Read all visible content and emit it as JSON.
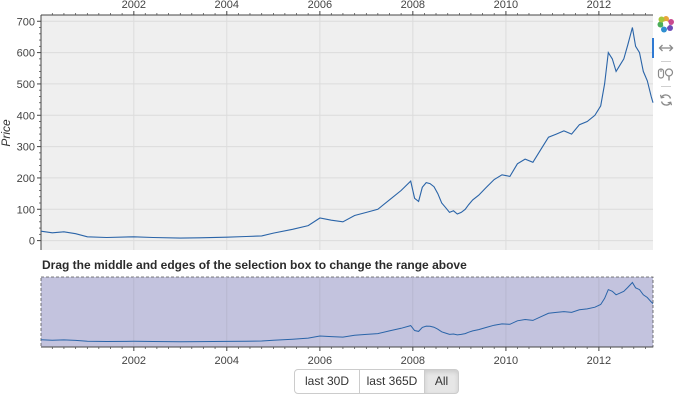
{
  "colors": {
    "plot_background": "#efefef",
    "line": "#2a64a8",
    "selection_fill": "#c0c0dc",
    "tool_active": "#2f7ad3"
  },
  "main_chart": {
    "ylabel": "Price",
    "y_ticks": [
      "0",
      "100",
      "200",
      "300",
      "400",
      "500",
      "600",
      "700"
    ],
    "x_ticks": [
      "2002",
      "2004",
      "2006",
      "2008",
      "2010",
      "2012"
    ]
  },
  "range_selector": {
    "title": "Drag the middle and edges of the selection box to change the range above",
    "x_ticks": [
      "2002",
      "2004",
      "2006",
      "2008",
      "2010",
      "2012"
    ]
  },
  "buttons": [
    "last 30D",
    "last 365D",
    "All"
  ],
  "active_button": "All",
  "toolbar": {
    "tools": [
      "bokeh-logo-icon",
      "x-pan-icon",
      "x-wheel-zoom-icon",
      "reset-icon"
    ]
  },
  "chart_data": {
    "type": "line",
    "series": [
      {
        "x": [
          "2000-01-03",
          "2000-04-01",
          "2000-07-01",
          "2000-10-01",
          "2001-01-01",
          "2001-06-01",
          "2002-01-01",
          "2002-06-01",
          "2003-01-01",
          "2003-06-01",
          "2004-01-01",
          "2004-06-01",
          "2004-10-01",
          "2005-01-01",
          "2005-06-01",
          "2005-10-01",
          "2006-01-01",
          "2006-04-01",
          "2006-07-01",
          "2006-10-01",
          "2007-01-01",
          "2007-04-01",
          "2007-07-01",
          "2007-10-01",
          "2007-12-15",
          "2008-01-15",
          "2008-02-15",
          "2008-03-15",
          "2008-04-15",
          "2008-05-15",
          "2008-06-15",
          "2008-07-15",
          "2008-08-15",
          "2008-09-15",
          "2008-10-15",
          "2008-11-15",
          "2008-12-15",
          "2009-01-15",
          "2009-02-15",
          "2009-03-15",
          "2009-04-15",
          "2009-06-01",
          "2009-08-01",
          "2009-10-01",
          "2009-12-01",
          "2010-02-01",
          "2010-04-01",
          "2010-06-01",
          "2010-08-01",
          "2010-10-01",
          "2010-12-01",
          "2011-02-01",
          "2011-04-01",
          "2011-06-01",
          "2011-08-01",
          "2011-10-01",
          "2011-12-01",
          "2012-01-15",
          "2012-02-15",
          "2012-03-15",
          "2012-04-15",
          "2012-05-15",
          "2012-06-15",
          "2012-07-15",
          "2012-08-15",
          "2012-09-20",
          "2012-10-15",
          "2012-11-15",
          "2012-12-15",
          "2013-01-15",
          "2013-02-15",
          "2013-03-01"
        ],
        "y": [
          30,
          25,
          28,
          22,
          12,
          10,
          12,
          10,
          8,
          9,
          11,
          13,
          15,
          24,
          36,
          48,
          72,
          65,
          60,
          80,
          90,
          100,
          130,
          160,
          190,
          135,
          125,
          170,
          185,
          182,
          172,
          150,
          120,
          105,
          90,
          95,
          85,
          90,
          100,
          115,
          130,
          145,
          170,
          195,
          210,
          205,
          245,
          260,
          250,
          290,
          330,
          340,
          350,
          340,
          370,
          380,
          400,
          430,
          500,
          600,
          580,
          540,
          560,
          580,
          625,
          680,
          620,
          600,
          540,
          510,
          460,
          440
        ]
      }
    ],
    "xlim": [
      "2000-01-03",
      "2013-03-01"
    ],
    "ylim": [
      -30,
      720
    ],
    "ylabel": "Price",
    "grid": true
  }
}
